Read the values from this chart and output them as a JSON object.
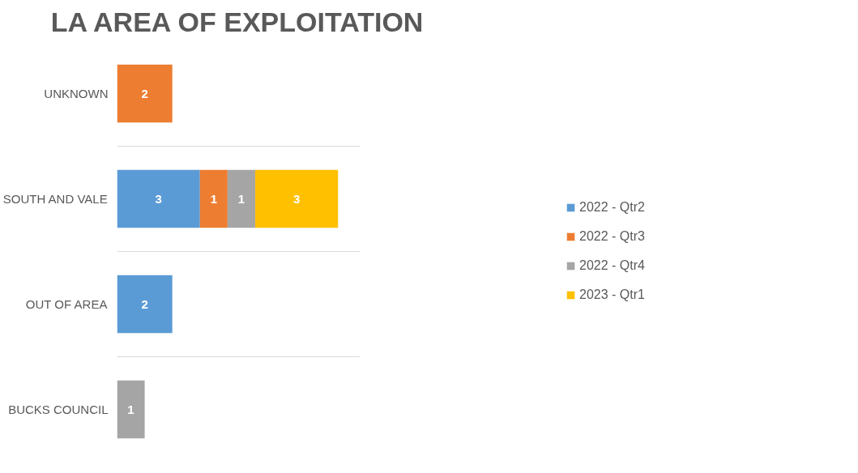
{
  "chart_data": {
    "type": "bar",
    "orientation": "horizontal",
    "stacked": true,
    "title": "LA AREA OF EXPLOITATION",
    "categories": [
      "UNKNOWN",
      "SOUTH AND VALE",
      "OUT OF AREA",
      "BUCKS COUNCIL"
    ],
    "series": [
      {
        "name": "2022 - Qtr2",
        "color": "#5b9bd5",
        "values": [
          null,
          3,
          2,
          null
        ]
      },
      {
        "name": "2022 - Qtr3",
        "color": "#ed7d31",
        "values": [
          2,
          1,
          null,
          null
        ]
      },
      {
        "name": "2022 - Qtr4",
        "color": "#a5a5a5",
        "values": [
          null,
          1,
          null,
          1
        ]
      },
      {
        "name": "2023 - Qtr1",
        "color": "#ffc000",
        "values": [
          null,
          3,
          null,
          null
        ]
      }
    ],
    "xlim": [
      0,
      8.8
    ],
    "tick_labels": "y",
    "data_labels": true,
    "grid": "y",
    "legend": "right"
  }
}
